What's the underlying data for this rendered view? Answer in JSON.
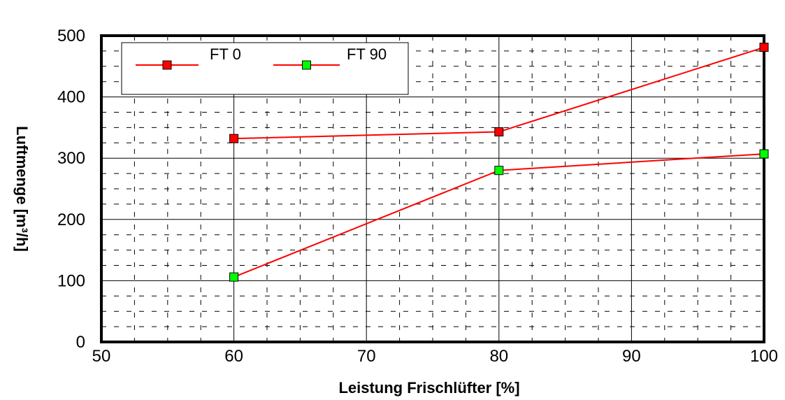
{
  "chart_data": {
    "type": "line",
    "title": "",
    "xlabel": "Leistung Frischlüfter [%]",
    "ylabel": "Luftmenge [m³/h]",
    "xlim": [
      50,
      100
    ],
    "ylim": [
      0,
      500
    ],
    "x_ticks": [
      50,
      60,
      70,
      80,
      90,
      100
    ],
    "y_ticks": [
      0,
      100,
      200,
      300,
      400,
      500
    ],
    "grid": true,
    "legend_position": "top-left",
    "series": [
      {
        "name": "FT 0",
        "color": "#ff0000",
        "marker_color": "#ff0000",
        "x": [
          60,
          80,
          100
        ],
        "y": [
          332,
          343,
          481
        ]
      },
      {
        "name": "FT 90",
        "color": "#ff0000",
        "marker_color": "#00ff00",
        "x": [
          60,
          80,
          100
        ],
        "y": [
          106,
          280,
          307
        ]
      }
    ]
  }
}
